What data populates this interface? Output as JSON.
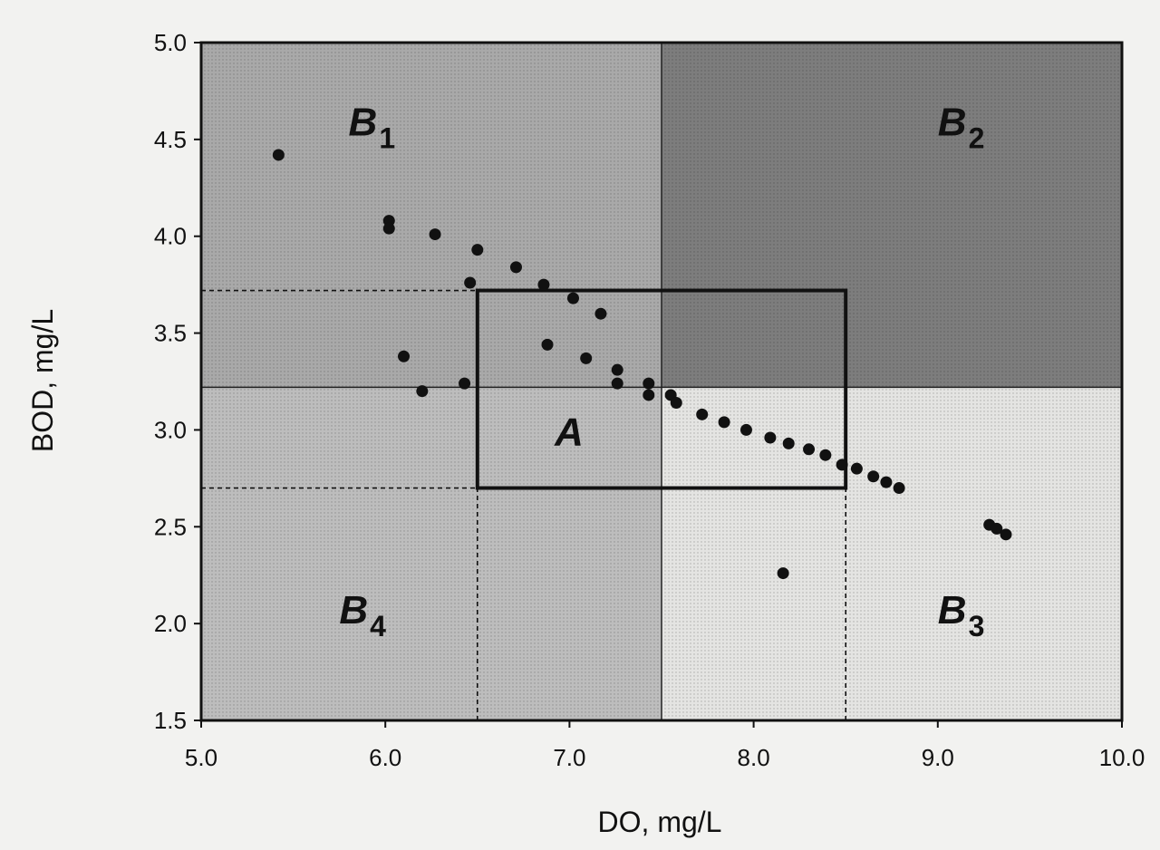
{
  "chart_data": {
    "type": "scatter",
    "title": "",
    "xlabel": "DO, mg/L",
    "ylabel": "BOD, mg/L",
    "xlim": [
      5.0,
      10.0
    ],
    "ylim": [
      1.5,
      5.0
    ],
    "x_ticks": [
      "5.0",
      "6.0",
      "7.0",
      "8.0",
      "9.0",
      "10.0"
    ],
    "y_ticks": [
      "1.5",
      "2.0",
      "2.5",
      "3.0",
      "3.5",
      "4.0",
      "4.5",
      "5.0"
    ],
    "grid": false,
    "legend": "none",
    "regions": [
      {
        "id": "B1",
        "letter": "B",
        "subscript": "1",
        "x_range": [
          5.0,
          7.5
        ],
        "y_range": [
          3.22,
          5.0
        ],
        "fill": "#a9a9a9",
        "label_at": [
          5.8,
          4.52
        ]
      },
      {
        "id": "B2",
        "letter": "B",
        "subscript": "2",
        "x_range": [
          7.5,
          10.0
        ],
        "y_range": [
          3.22,
          5.0
        ],
        "fill": "#7d7d7d",
        "label_at": [
          9.0,
          4.52
        ]
      },
      {
        "id": "B3",
        "letter": "B",
        "subscript": "3",
        "x_range": [
          7.5,
          10.0
        ],
        "y_range": [
          1.5,
          3.22
        ],
        "fill": "#e4e4e2",
        "label_at": [
          9.0,
          2.0
        ]
      },
      {
        "id": "B4",
        "letter": "B",
        "subscript": "4",
        "x_range": [
          5.0,
          7.5
        ],
        "y_range": [
          1.5,
          3.22
        ],
        "fill": "#bdbdbd",
        "label_at": [
          5.75,
          2.0
        ]
      }
    ],
    "target_box": {
      "id": "A",
      "label": "A",
      "x_range": [
        6.5,
        8.5
      ],
      "y_range": [
        2.7,
        3.72
      ],
      "label_at": [
        6.92,
        2.92
      ]
    },
    "reference_lines": [
      {
        "x": [
          5.0,
          6.5
        ],
        "y": [
          3.72,
          3.72
        ]
      },
      {
        "x": [
          5.0,
          6.5
        ],
        "y": [
          2.7,
          2.7
        ]
      },
      {
        "x": [
          6.5,
          6.5
        ],
        "y": [
          1.5,
          2.7
        ]
      },
      {
        "x": [
          8.5,
          8.5
        ],
        "y": [
          1.5,
          2.7
        ]
      }
    ],
    "points": [
      {
        "x": 5.42,
        "y": 4.42
      },
      {
        "x": 6.02,
        "y": 4.08
      },
      {
        "x": 6.02,
        "y": 4.04
      },
      {
        "x": 6.27,
        "y": 4.01
      },
      {
        "x": 6.5,
        "y": 3.93
      },
      {
        "x": 6.71,
        "y": 3.84
      },
      {
        "x": 6.46,
        "y": 3.76
      },
      {
        "x": 6.86,
        "y": 3.75
      },
      {
        "x": 7.02,
        "y": 3.68
      },
      {
        "x": 7.17,
        "y": 3.6
      },
      {
        "x": 6.1,
        "y": 3.38
      },
      {
        "x": 6.88,
        "y": 3.44
      },
      {
        "x": 7.09,
        "y": 3.37
      },
      {
        "x": 7.26,
        "y": 3.31
      },
      {
        "x": 6.2,
        "y": 3.2
      },
      {
        "x": 6.43,
        "y": 3.24
      },
      {
        "x": 7.26,
        "y": 3.24
      },
      {
        "x": 7.43,
        "y": 3.24
      },
      {
        "x": 7.43,
        "y": 3.18
      },
      {
        "x": 7.55,
        "y": 3.18
      },
      {
        "x": 7.58,
        "y": 3.14
      },
      {
        "x": 7.72,
        "y": 3.08
      },
      {
        "x": 7.84,
        "y": 3.04
      },
      {
        "x": 7.96,
        "y": 3.0
      },
      {
        "x": 8.09,
        "y": 2.96
      },
      {
        "x": 8.19,
        "y": 2.93
      },
      {
        "x": 8.3,
        "y": 2.9
      },
      {
        "x": 8.39,
        "y": 2.87
      },
      {
        "x": 8.48,
        "y": 2.82
      },
      {
        "x": 8.56,
        "y": 2.8
      },
      {
        "x": 8.65,
        "y": 2.76
      },
      {
        "x": 8.72,
        "y": 2.73
      },
      {
        "x": 8.79,
        "y": 2.7
      },
      {
        "x": 9.28,
        "y": 2.51
      },
      {
        "x": 9.32,
        "y": 2.49
      },
      {
        "x": 9.37,
        "y": 2.46
      },
      {
        "x": 8.16,
        "y": 2.26
      }
    ]
  }
}
